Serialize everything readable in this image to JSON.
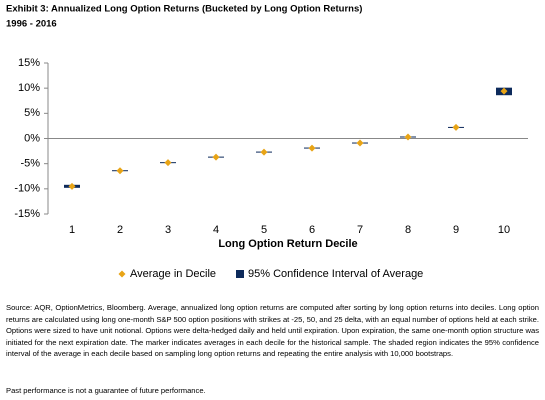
{
  "chart_data": {
    "type": "interval",
    "title": "Exhibit 3: Annualized Long Option Returns (Bucketed by Long Option Returns)",
    "subtitle": "1996 - 2016",
    "x_label": "Long Option Return Decile",
    "categories": [
      "1",
      "2",
      "3",
      "4",
      "5",
      "6",
      "7",
      "8",
      "9",
      "10"
    ],
    "series": [
      {
        "name": "Average in Decile",
        "color": "#e8a416",
        "values": [
          -9.5,
          -6.4,
          -4.8,
          -3.7,
          -2.7,
          -1.9,
          -0.9,
          0.3,
          2.2,
          9.4
        ]
      },
      {
        "name": "95% Confidence Interval of Average",
        "color": "#0d2a5b",
        "low": [
          -9.8,
          -6.5,
          -4.9,
          -3.8,
          -2.8,
          -2.0,
          -1.0,
          0.2,
          2.1,
          8.6
        ],
        "high": [
          -9.2,
          -6.3,
          -4.7,
          -3.6,
          -2.6,
          -1.8,
          -0.8,
          0.4,
          2.3,
          10.1
        ]
      }
    ],
    "ylim": [
      -15,
      15
    ],
    "yticks": [
      {
        "value": -15,
        "label": "-15%"
      },
      {
        "value": -10,
        "label": "-10%"
      },
      {
        "value": -5,
        "label": "-5%"
      },
      {
        "value": 0,
        "label": "0%"
      },
      {
        "value": 5,
        "label": "5%"
      },
      {
        "value": 10,
        "label": "10%"
      },
      {
        "value": 15,
        "label": "15%"
      }
    ],
    "grid": false,
    "legend": "bottom"
  },
  "notes": {
    "source": "Source: AQR, OptionMetrics, Bloomberg. Average, annualized long option returns are computed after sorting by long option returns into deciles. Long option returns are calculated using long one-month S&P 500 option positions with strikes at -25, 50, and 25 delta, with an equal number of options held at each strike. Options were sized to have unit notional. Options were delta-hedged daily and held until expiration. Upon expiration, the same one-month option structure was initiated for the next expiration date. The marker indicates averages in each decile for the historical sample. The shaded region indicates the 95% confidence interval of the average in each decile based on sampling long option returns and repeating the entire analysis with 10,000 bootstraps.",
    "disclaimer": "Past performance is not a guarantee of future performance."
  }
}
